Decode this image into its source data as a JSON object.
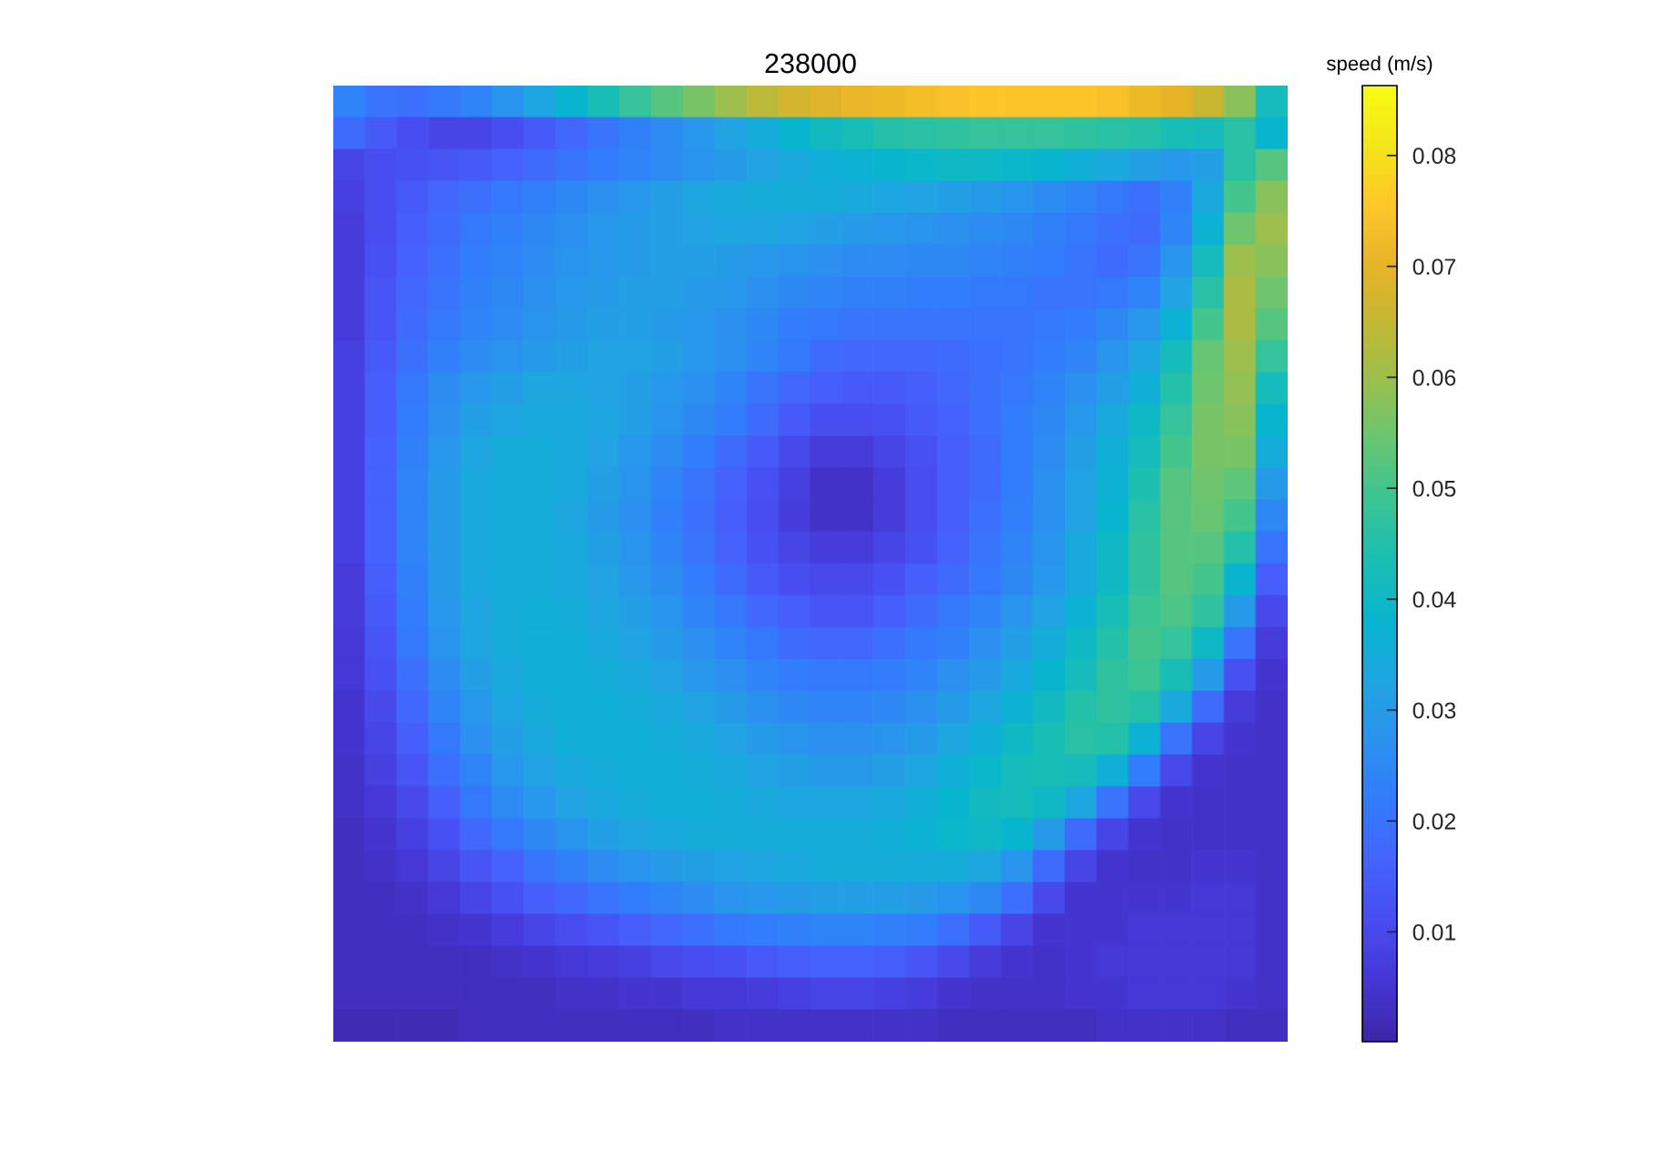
{
  "chart_data": {
    "type": "heatmap",
    "title": "238000",
    "clabel": "speed (m/s)",
    "categories": [
      null,
      null,
      null,
      null,
      null,
      null,
      null,
      null,
      null,
      null,
      null,
      null,
      null,
      null,
      null,
      null,
      null,
      null,
      null,
      null,
      null,
      null,
      null,
      null,
      null,
      null,
      null,
      null,
      null,
      null
    ],
    "y_categories": [
      null,
      null,
      null,
      null,
      null,
      null,
      null,
      null,
      null,
      null,
      null,
      null,
      null,
      null,
      null,
      null,
      null,
      null,
      null,
      null,
      null,
      null,
      null,
      null,
      null,
      null,
      null,
      null,
      null,
      null
    ],
    "cells": [
      [
        0.024,
        0.02,
        0.019,
        0.021,
        0.024,
        0.028,
        0.033,
        0.038,
        0.043,
        0.048,
        0.052,
        0.056,
        0.06,
        0.064,
        0.067,
        0.069,
        0.071,
        0.072,
        0.073,
        0.074,
        0.075,
        0.075,
        0.075,
        0.075,
        0.074,
        0.072,
        0.07,
        0.066,
        0.058,
        0.042
      ],
      [
        0.018,
        0.014,
        0.011,
        0.009,
        0.009,
        0.011,
        0.014,
        0.017,
        0.02,
        0.023,
        0.026,
        0.029,
        0.032,
        0.035,
        0.038,
        0.041,
        0.043,
        0.045,
        0.046,
        0.047,
        0.048,
        0.048,
        0.048,
        0.047,
        0.046,
        0.045,
        0.043,
        0.042,
        0.046,
        0.038
      ],
      [
        0.009,
        0.011,
        0.012,
        0.013,
        0.014,
        0.016,
        0.018,
        0.02,
        0.022,
        0.024,
        0.026,
        0.028,
        0.03,
        0.032,
        0.034,
        0.036,
        0.037,
        0.038,
        0.039,
        0.04,
        0.04,
        0.039,
        0.038,
        0.036,
        0.034,
        0.031,
        0.029,
        0.031,
        0.046,
        0.052
      ],
      [
        0.008,
        0.011,
        0.014,
        0.017,
        0.019,
        0.021,
        0.023,
        0.025,
        0.027,
        0.029,
        0.031,
        0.033,
        0.034,
        0.035,
        0.035,
        0.035,
        0.034,
        0.033,
        0.032,
        0.031,
        0.03,
        0.028,
        0.026,
        0.024,
        0.021,
        0.019,
        0.023,
        0.034,
        0.05,
        0.058
      ],
      [
        0.007,
        0.011,
        0.015,
        0.018,
        0.021,
        0.023,
        0.025,
        0.027,
        0.029,
        0.03,
        0.031,
        0.032,
        0.033,
        0.033,
        0.032,
        0.031,
        0.03,
        0.029,
        0.028,
        0.027,
        0.026,
        0.025,
        0.023,
        0.021,
        0.019,
        0.018,
        0.024,
        0.037,
        0.055,
        0.06
      ],
      [
        0.007,
        0.012,
        0.016,
        0.019,
        0.022,
        0.024,
        0.026,
        0.028,
        0.029,
        0.03,
        0.031,
        0.031,
        0.03,
        0.029,
        0.028,
        0.027,
        0.026,
        0.026,
        0.025,
        0.025,
        0.024,
        0.023,
        0.022,
        0.02,
        0.018,
        0.02,
        0.028,
        0.042,
        0.06,
        0.058
      ],
      [
        0.007,
        0.013,
        0.017,
        0.02,
        0.023,
        0.025,
        0.027,
        0.029,
        0.03,
        0.031,
        0.031,
        0.03,
        0.029,
        0.027,
        0.025,
        0.024,
        0.023,
        0.023,
        0.022,
        0.022,
        0.021,
        0.021,
        0.02,
        0.02,
        0.021,
        0.024,
        0.032,
        0.046,
        0.062,
        0.055
      ],
      [
        0.007,
        0.013,
        0.018,
        0.021,
        0.024,
        0.026,
        0.028,
        0.03,
        0.031,
        0.031,
        0.03,
        0.029,
        0.027,
        0.025,
        0.022,
        0.021,
        0.02,
        0.02,
        0.02,
        0.02,
        0.02,
        0.02,
        0.021,
        0.022,
        0.025,
        0.029,
        0.037,
        0.05,
        0.062,
        0.052
      ],
      [
        0.008,
        0.014,
        0.019,
        0.023,
        0.026,
        0.028,
        0.03,
        0.031,
        0.032,
        0.032,
        0.031,
        0.029,
        0.027,
        0.024,
        0.021,
        0.018,
        0.017,
        0.017,
        0.017,
        0.018,
        0.019,
        0.02,
        0.022,
        0.024,
        0.028,
        0.033,
        0.042,
        0.054,
        0.06,
        0.048
      ],
      [
        0.008,
        0.015,
        0.021,
        0.026,
        0.029,
        0.031,
        0.033,
        0.033,
        0.032,
        0.031,
        0.029,
        0.027,
        0.024,
        0.02,
        0.017,
        0.015,
        0.014,
        0.014,
        0.015,
        0.017,
        0.019,
        0.021,
        0.024,
        0.027,
        0.031,
        0.036,
        0.045,
        0.055,
        0.059,
        0.042
      ],
      [
        0.008,
        0.015,
        0.022,
        0.027,
        0.031,
        0.033,
        0.034,
        0.034,
        0.033,
        0.031,
        0.028,
        0.025,
        0.022,
        0.018,
        0.014,
        0.011,
        0.011,
        0.012,
        0.014,
        0.016,
        0.019,
        0.022,
        0.025,
        0.029,
        0.034,
        0.04,
        0.048,
        0.056,
        0.058,
        0.038
      ],
      [
        0.008,
        0.016,
        0.023,
        0.029,
        0.033,
        0.035,
        0.035,
        0.034,
        0.032,
        0.029,
        0.026,
        0.022,
        0.018,
        0.014,
        0.01,
        0.007,
        0.007,
        0.009,
        0.012,
        0.015,
        0.018,
        0.022,
        0.026,
        0.031,
        0.036,
        0.042,
        0.05,
        0.056,
        0.056,
        0.035
      ],
      [
        0.008,
        0.016,
        0.024,
        0.03,
        0.034,
        0.035,
        0.035,
        0.034,
        0.031,
        0.028,
        0.024,
        0.02,
        0.016,
        0.012,
        0.008,
        0.004,
        0.004,
        0.007,
        0.011,
        0.015,
        0.018,
        0.022,
        0.027,
        0.032,
        0.037,
        0.044,
        0.052,
        0.055,
        0.053,
        0.03
      ],
      [
        0.008,
        0.016,
        0.024,
        0.03,
        0.034,
        0.035,
        0.035,
        0.033,
        0.03,
        0.027,
        0.023,
        0.019,
        0.015,
        0.011,
        0.007,
        0.004,
        0.004,
        0.007,
        0.011,
        0.015,
        0.019,
        0.023,
        0.027,
        0.032,
        0.038,
        0.046,
        0.052,
        0.054,
        0.05,
        0.025
      ],
      [
        0.008,
        0.016,
        0.024,
        0.03,
        0.034,
        0.035,
        0.035,
        0.034,
        0.031,
        0.028,
        0.024,
        0.02,
        0.016,
        0.012,
        0.009,
        0.007,
        0.007,
        0.009,
        0.012,
        0.016,
        0.02,
        0.024,
        0.028,
        0.034,
        0.04,
        0.047,
        0.052,
        0.052,
        0.045,
        0.02
      ],
      [
        0.007,
        0.015,
        0.023,
        0.03,
        0.034,
        0.035,
        0.035,
        0.034,
        0.032,
        0.029,
        0.026,
        0.022,
        0.018,
        0.014,
        0.011,
        0.01,
        0.01,
        0.012,
        0.015,
        0.018,
        0.021,
        0.025,
        0.029,
        0.034,
        0.04,
        0.047,
        0.052,
        0.05,
        0.038,
        0.015
      ],
      [
        0.007,
        0.014,
        0.022,
        0.029,
        0.033,
        0.035,
        0.036,
        0.035,
        0.033,
        0.031,
        0.028,
        0.024,
        0.021,
        0.017,
        0.015,
        0.013,
        0.013,
        0.015,
        0.018,
        0.021,
        0.024,
        0.028,
        0.032,
        0.037,
        0.043,
        0.049,
        0.051,
        0.047,
        0.03,
        0.01
      ],
      [
        0.006,
        0.013,
        0.021,
        0.028,
        0.033,
        0.035,
        0.036,
        0.036,
        0.034,
        0.032,
        0.03,
        0.027,
        0.024,
        0.021,
        0.018,
        0.017,
        0.017,
        0.019,
        0.021,
        0.023,
        0.027,
        0.031,
        0.035,
        0.04,
        0.045,
        0.05,
        0.048,
        0.04,
        0.02,
        0.007
      ],
      [
        0.006,
        0.012,
        0.019,
        0.026,
        0.031,
        0.034,
        0.036,
        0.036,
        0.035,
        0.034,
        0.032,
        0.029,
        0.027,
        0.024,
        0.022,
        0.021,
        0.021,
        0.022,
        0.024,
        0.027,
        0.03,
        0.034,
        0.038,
        0.042,
        0.047,
        0.049,
        0.043,
        0.03,
        0.012,
        0.005
      ],
      [
        0.005,
        0.01,
        0.017,
        0.024,
        0.029,
        0.033,
        0.035,
        0.036,
        0.036,
        0.035,
        0.034,
        0.032,
        0.03,
        0.027,
        0.025,
        0.024,
        0.024,
        0.025,
        0.027,
        0.03,
        0.033,
        0.037,
        0.041,
        0.045,
        0.047,
        0.045,
        0.034,
        0.018,
        0.007,
        0.004
      ],
      [
        0.005,
        0.009,
        0.015,
        0.021,
        0.027,
        0.031,
        0.034,
        0.036,
        0.036,
        0.036,
        0.035,
        0.034,
        0.032,
        0.03,
        0.028,
        0.027,
        0.027,
        0.028,
        0.03,
        0.033,
        0.036,
        0.04,
        0.043,
        0.046,
        0.045,
        0.037,
        0.02,
        0.009,
        0.005,
        0.004
      ],
      [
        0.004,
        0.008,
        0.013,
        0.019,
        0.024,
        0.029,
        0.032,
        0.034,
        0.035,
        0.036,
        0.036,
        0.035,
        0.034,
        0.032,
        0.031,
        0.03,
        0.03,
        0.031,
        0.033,
        0.036,
        0.039,
        0.042,
        0.043,
        0.042,
        0.036,
        0.022,
        0.01,
        0.005,
        0.004,
        0.004
      ],
      [
        0.004,
        0.006,
        0.01,
        0.015,
        0.021,
        0.026,
        0.029,
        0.032,
        0.034,
        0.035,
        0.036,
        0.036,
        0.035,
        0.034,
        0.033,
        0.033,
        0.033,
        0.034,
        0.036,
        0.038,
        0.041,
        0.042,
        0.04,
        0.033,
        0.02,
        0.01,
        0.005,
        0.004,
        0.004,
        0.004
      ],
      [
        0.003,
        0.005,
        0.008,
        0.012,
        0.017,
        0.021,
        0.025,
        0.028,
        0.031,
        0.033,
        0.034,
        0.035,
        0.035,
        0.035,
        0.035,
        0.035,
        0.035,
        0.036,
        0.037,
        0.039,
        0.04,
        0.038,
        0.03,
        0.018,
        0.009,
        0.005,
        0.004,
        0.004,
        0.004,
        0.004
      ],
      [
        0.003,
        0.004,
        0.006,
        0.009,
        0.013,
        0.016,
        0.02,
        0.023,
        0.026,
        0.028,
        0.03,
        0.031,
        0.032,
        0.033,
        0.034,
        0.035,
        0.035,
        0.035,
        0.035,
        0.035,
        0.033,
        0.028,
        0.018,
        0.009,
        0.005,
        0.004,
        0.004,
        0.005,
        0.005,
        0.004
      ],
      [
        0.003,
        0.003,
        0.004,
        0.006,
        0.009,
        0.012,
        0.015,
        0.017,
        0.02,
        0.022,
        0.024,
        0.026,
        0.028,
        0.029,
        0.03,
        0.031,
        0.031,
        0.031,
        0.03,
        0.028,
        0.025,
        0.019,
        0.01,
        0.005,
        0.005,
        0.005,
        0.005,
        0.006,
        0.006,
        0.004
      ],
      [
        0.003,
        0.003,
        0.003,
        0.004,
        0.005,
        0.007,
        0.009,
        0.011,
        0.013,
        0.015,
        0.017,
        0.019,
        0.021,
        0.022,
        0.023,
        0.024,
        0.024,
        0.023,
        0.022,
        0.019,
        0.014,
        0.009,
        0.005,
        0.005,
        0.005,
        0.006,
        0.006,
        0.006,
        0.006,
        0.004
      ],
      [
        0.003,
        0.003,
        0.003,
        0.003,
        0.003,
        0.004,
        0.005,
        0.006,
        0.007,
        0.008,
        0.01,
        0.011,
        0.012,
        0.014,
        0.015,
        0.016,
        0.016,
        0.015,
        0.013,
        0.01,
        0.007,
        0.005,
        0.004,
        0.005,
        0.006,
        0.006,
        0.006,
        0.006,
        0.006,
        0.004
      ],
      [
        0.003,
        0.003,
        0.003,
        0.003,
        0.003,
        0.003,
        0.003,
        0.004,
        0.004,
        0.005,
        0.005,
        0.006,
        0.006,
        0.007,
        0.008,
        0.009,
        0.009,
        0.008,
        0.007,
        0.005,
        0.004,
        0.004,
        0.004,
        0.005,
        0.005,
        0.006,
        0.006,
        0.006,
        0.005,
        0.004
      ],
      [
        0.002,
        0.002,
        0.002,
        0.002,
        0.003,
        0.003,
        0.003,
        0.003,
        0.003,
        0.003,
        0.003,
        0.003,
        0.004,
        0.004,
        0.004,
        0.004,
        0.004,
        0.004,
        0.004,
        0.003,
        0.003,
        0.003,
        0.003,
        0.003,
        0.004,
        0.004,
        0.004,
        0.004,
        0.003,
        0.003
      ]
    ],
    "clim": [
      0.0001,
      0.0863
    ],
    "cticks": [
      0.01,
      0.02,
      0.03,
      0.04,
      0.05,
      0.06,
      0.07,
      0.08
    ],
    "tick_labels": false
  }
}
